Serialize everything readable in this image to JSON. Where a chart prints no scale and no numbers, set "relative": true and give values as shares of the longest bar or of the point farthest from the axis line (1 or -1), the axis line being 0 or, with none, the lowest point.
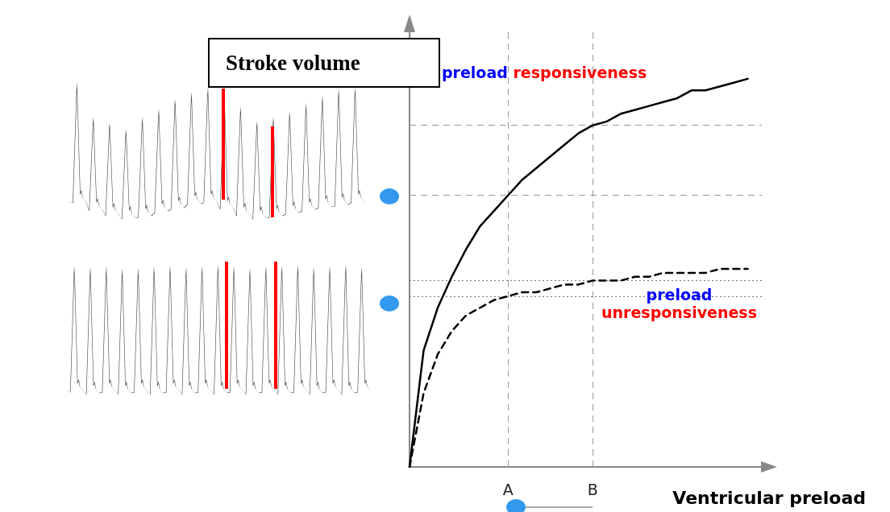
{
  "chart_data": {
    "type": "line",
    "ylabel": "Stroke volume",
    "xlabel": "Ventricular preload",
    "relative": true,
    "categories": [
      null,
      null,
      null,
      null,
      null,
      null,
      null,
      "A",
      null,
      null,
      null,
      null,
      null,
      "B",
      null,
      null,
      null,
      null,
      null,
      null,
      null,
      null,
      null,
      null,
      null,
      null
    ],
    "tick_labels": "x",
    "grid": false,
    "marker": "none",
    "series": [
      {
        "name": "preload responsiveness",
        "color": "#000000",
        "line_style": "solid",
        "values": [
          0,
          0.3,
          0.41,
          0.49,
          0.56,
          0.62,
          0.66,
          0.7,
          0.74,
          0.77,
          0.8,
          0.83,
          0.86,
          0.88,
          0.89,
          0.91,
          0.92,
          0.93,
          0.94,
          0.95,
          0.97,
          0.97,
          0.98,
          0.99,
          1.0,
          null
        ]
      },
      {
        "name": "preload unresponsiveness",
        "color": "#000000",
        "line_style": "dashed",
        "values": [
          0,
          0.19,
          0.29,
          0.35,
          0.39,
          0.41,
          0.43,
          0.44,
          0.45,
          0.45,
          0.46,
          0.47,
          0.47,
          0.48,
          0.48,
          0.48,
          0.49,
          0.49,
          0.5,
          0.5,
          0.5,
          0.5,
          0.51,
          0.51,
          0.51,
          null
        ]
      }
    ],
    "ref_lines": [
      {
        "axis": "x",
        "value": "A",
        "color": "#999999",
        "line_style": "dashed"
      },
      {
        "axis": "x",
        "value": "B",
        "color": "#999999",
        "line_style": "dashed"
      },
      {
        "axis": "y",
        "value": 0.7,
        "color": "#999999",
        "line_style": "dashed"
      },
      {
        "axis": "y",
        "value": 0.88,
        "color": "#999999",
        "line_style": "dashed"
      },
      {
        "axis": "y",
        "value": 0.44,
        "color": "#777777",
        "line_style": "dotted"
      },
      {
        "axis": "y",
        "value": 0.48,
        "color": "#777777",
        "line_style": "dotted"
      }
    ]
  }
}
